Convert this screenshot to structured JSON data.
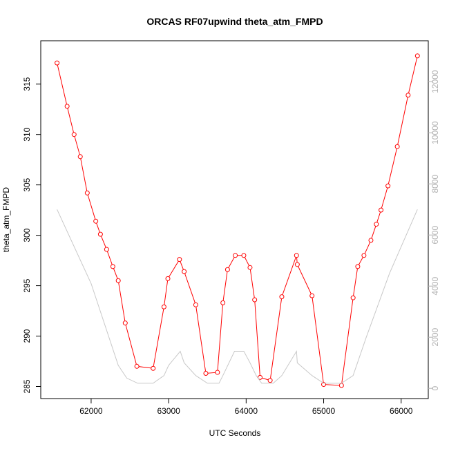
{
  "chart_data": {
    "type": "line",
    "title": "ORCAS RF07upwind theta_atm_FMPD",
    "xlabel": "UTC Seconds",
    "ylabel": "theta_atm_FMPD",
    "xlim": [
      61350,
      66350
    ],
    "ylim": [
      283.8,
      319.3
    ],
    "y2lim": [
      -400,
      13600
    ],
    "x_ticks": [
      62000,
      63000,
      64000,
      65000,
      66000
    ],
    "y_ticks": [
      285,
      290,
      295,
      300,
      305,
      310,
      315
    ],
    "y2_ticks": [
      0,
      2000,
      4000,
      6000,
      8000,
      10000,
      12000
    ],
    "grid": false,
    "legend": "none",
    "colors": {
      "theta": "#ff0000",
      "altitude": "#c8c8c8",
      "axis": "#000000",
      "right_axis": "#b0b0b0"
    },
    "series": [
      {
        "axis": "left",
        "style": "line+open-circles",
        "points": [
          [
            61560,
            317.1
          ],
          [
            61690,
            312.8
          ],
          [
            61780,
            310.0
          ],
          [
            61860,
            307.8
          ],
          [
            61950,
            304.2
          ],
          [
            62060,
            301.4
          ],
          [
            62120,
            300.1
          ],
          [
            62200,
            298.6
          ],
          [
            62280,
            296.9
          ],
          [
            62350,
            295.5
          ],
          [
            62440,
            291.3
          ],
          [
            62590,
            287.0
          ],
          [
            62800,
            286.8
          ],
          [
            62940,
            292.9
          ],
          [
            62990,
            295.7
          ],
          [
            63140,
            297.6
          ],
          [
            63200,
            296.4
          ],
          [
            63350,
            293.1
          ],
          [
            63480,
            286.3
          ],
          [
            63630,
            286.4
          ],
          [
            63700,
            293.3
          ],
          [
            63760,
            296.6
          ],
          [
            63860,
            298.0
          ],
          [
            63970,
            298.0
          ],
          [
            64050,
            296.8
          ],
          [
            64110,
            293.6
          ],
          [
            64180,
            285.9
          ],
          [
            64310,
            285.6
          ],
          [
            64460,
            293.9
          ],
          [
            64650,
            298.0
          ],
          [
            64660,
            297.1
          ],
          [
            64850,
            294.0
          ],
          [
            65000,
            285.2
          ],
          [
            65230,
            285.1
          ],
          [
            65380,
            293.8
          ],
          [
            65440,
            296.9
          ],
          [
            65520,
            298.0
          ],
          [
            65610,
            299.5
          ],
          [
            65680,
            301.1
          ],
          [
            65740,
            302.5
          ],
          [
            65830,
            304.9
          ],
          [
            65950,
            308.8
          ],
          [
            66090,
            313.9
          ],
          [
            66210,
            317.8
          ]
        ]
      },
      {
        "axis": "right",
        "style": "line",
        "points": [
          [
            61560,
            7000
          ],
          [
            62000,
            4100
          ],
          [
            62350,
            900
          ],
          [
            62460,
            400
          ],
          [
            62600,
            200
          ],
          [
            62800,
            200
          ],
          [
            62940,
            500
          ],
          [
            63000,
            900
          ],
          [
            63150,
            1450
          ],
          [
            63200,
            1000
          ],
          [
            63350,
            500
          ],
          [
            63500,
            200
          ],
          [
            63650,
            200
          ],
          [
            63700,
            500
          ],
          [
            63850,
            1450
          ],
          [
            63970,
            1450
          ],
          [
            64050,
            1000
          ],
          [
            64130,
            500
          ],
          [
            64200,
            200
          ],
          [
            64350,
            200
          ],
          [
            64460,
            500
          ],
          [
            64650,
            1450
          ],
          [
            64660,
            1000
          ],
          [
            64850,
            500
          ],
          [
            65000,
            200
          ],
          [
            65230,
            200
          ],
          [
            65380,
            500
          ],
          [
            65550,
            2000
          ],
          [
            65850,
            4500
          ],
          [
            66210,
            7000
          ]
        ]
      }
    ]
  }
}
